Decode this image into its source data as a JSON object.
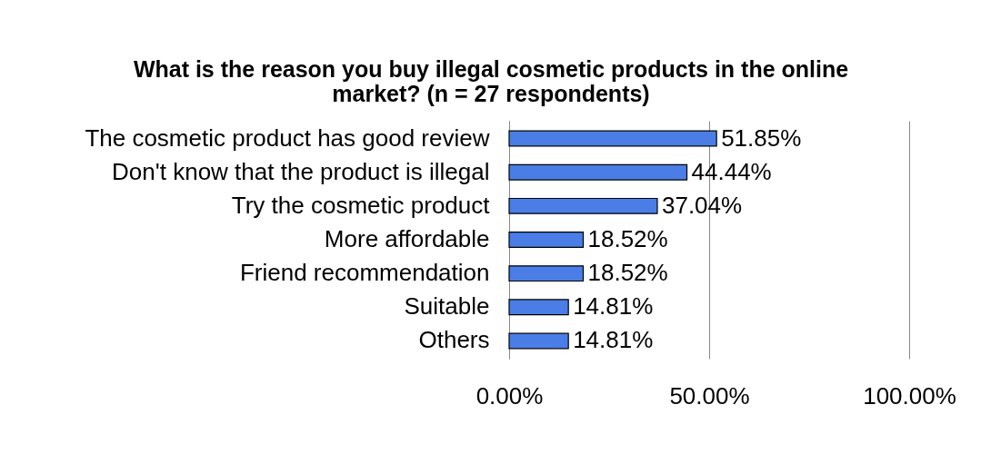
{
  "chart_data": {
    "type": "bar",
    "orientation": "horizontal",
    "title": "What is the reason you buy illegal cosmetic products in the online market? (n = 27 respondents)",
    "categories": [
      "The cosmetic product has good review",
      "Don't know that the product is illegal",
      "Try the cosmetic product",
      "More affordable",
      "Friend recommendation",
      "Suitable",
      "Others"
    ],
    "values": [
      51.85,
      44.44,
      37.04,
      18.52,
      18.52,
      14.81,
      14.81
    ],
    "value_labels": [
      "51.85%",
      "44.44%",
      "37.04%",
      "18.52%",
      "18.52%",
      "14.81%",
      "14.81%"
    ],
    "color": "#4a7ee6",
    "xlim": [
      0,
      100
    ],
    "xticks": [
      {
        "value": 0,
        "label": "0.00%"
      },
      {
        "value": 50,
        "label": "50.00%"
      },
      {
        "value": 100,
        "label": "100.00%"
      }
    ],
    "grid": "x"
  }
}
